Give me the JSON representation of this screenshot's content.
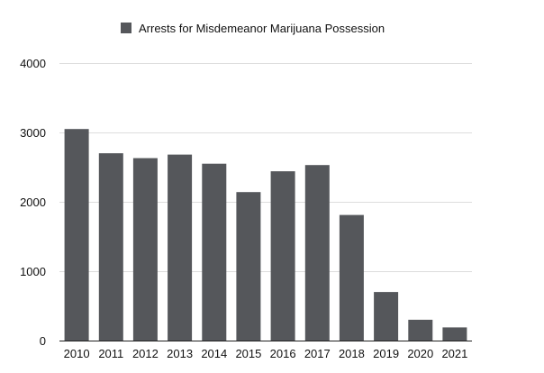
{
  "chart_data": {
    "type": "bar",
    "categories": [
      "2010",
      "2011",
      "2012",
      "2013",
      "2014",
      "2015",
      "2016",
      "2017",
      "2018",
      "2019",
      "2020",
      "2021"
    ],
    "series": [
      {
        "name": "Arrests for Misdemeanor Marijuana Possession",
        "values": [
          3050,
          2700,
          2630,
          2680,
          2550,
          2140,
          2440,
          2530,
          1810,
          700,
          300,
          190
        ],
        "color": "#55575b"
      }
    ],
    "title": "",
    "xlabel": "",
    "ylabel": "",
    "ylim": [
      0,
      4000
    ],
    "yticks": [
      "0",
      "1000",
      "2000",
      "3000",
      "4000"
    ],
    "grid": true,
    "legend": "top-center"
  }
}
